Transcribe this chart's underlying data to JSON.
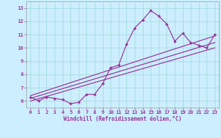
{
  "title": "",
  "xlabel": "Windchill (Refroidissement éolien,°C)",
  "bg_color": "#cceeff",
  "line_color": "#993399",
  "grid_color": "#aadddd",
  "x_data": [
    0,
    1,
    2,
    3,
    4,
    5,
    6,
    7,
    8,
    9,
    10,
    11,
    12,
    13,
    14,
    15,
    16,
    17,
    18,
    19,
    20,
    21,
    22,
    23
  ],
  "y_data": [
    6.3,
    6.0,
    6.3,
    6.2,
    6.1,
    5.8,
    5.9,
    6.5,
    6.5,
    7.3,
    8.5,
    8.7,
    10.3,
    11.5,
    12.1,
    12.8,
    12.4,
    11.8,
    10.5,
    11.1,
    10.4,
    10.2,
    10.0,
    11.0
  ],
  "trend1_x": [
    0,
    23
  ],
  "trend1_y": [
    6.2,
    10.4
  ],
  "trend2_x": [
    0,
    23
  ],
  "trend2_y": [
    6.4,
    10.9
  ],
  "trend3_x": [
    0,
    23
  ],
  "trend3_y": [
    6.0,
    10.0
  ],
  "xlim": [
    -0.5,
    23.5
  ],
  "ylim": [
    5.5,
    13.5
  ],
  "xticks": [
    0,
    1,
    2,
    3,
    4,
    5,
    6,
    7,
    8,
    9,
    10,
    11,
    12,
    13,
    14,
    15,
    16,
    17,
    18,
    19,
    20,
    21,
    22,
    23
  ],
  "yticks": [
    6,
    7,
    8,
    9,
    10,
    11,
    12,
    13
  ],
  "tick_color": "#993399",
  "label_color": "#993399"
}
